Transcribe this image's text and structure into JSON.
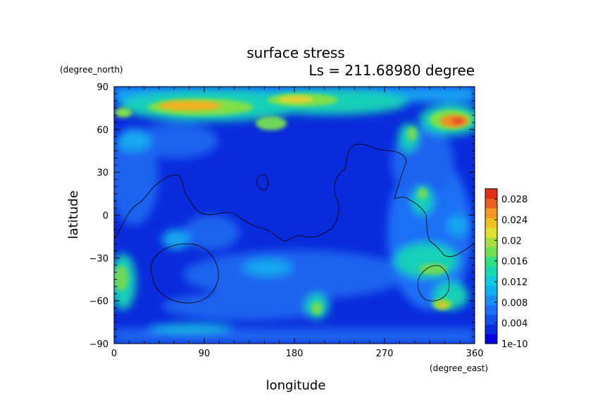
{
  "chart_data": {
    "type": "heatmap",
    "title": "surface stress",
    "subtitle": "Ls = 211.68980 degree",
    "xlabel": "longitude",
    "ylabel": "latitude",
    "xunit": "(degree_east)",
    "yunit": "(degree_north)",
    "xlim": [
      0,
      360
    ],
    "ylim": [
      -90,
      90
    ],
    "xticks": [
      "0",
      "90",
      "180",
      "270",
      "360"
    ],
    "yticks": [
      "90",
      "60",
      "30",
      "0",
      "−30",
      "−60",
      "−90"
    ],
    "colorbar": {
      "ticks": [
        "1e-10",
        "0.004",
        "0.008",
        "0.012",
        "0.016",
        "0.02",
        "0.024",
        "0.028"
      ],
      "range": [
        0,
        0.03
      ]
    }
  }
}
